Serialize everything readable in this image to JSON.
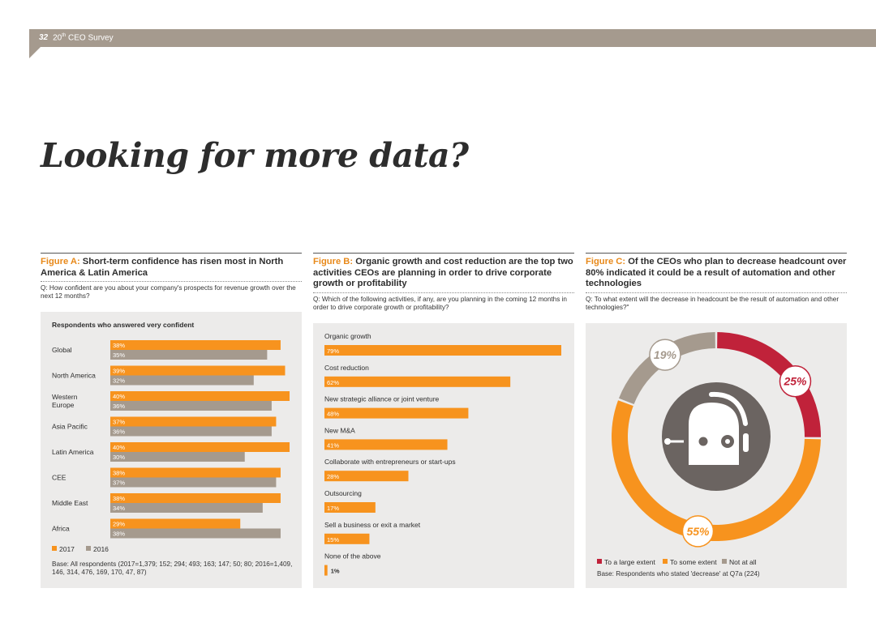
{
  "header": {
    "page_number": "32",
    "survey_prefix": "20",
    "survey_sup": "th",
    "survey_suffix": " CEO Survey"
  },
  "title": "Looking for more data?",
  "figA": {
    "label": "Figure A:",
    "title": "Short-term confidence has risen most in North America & Latin America",
    "question": "Q: How confident are you about your company's prospects for revenue growth over the next 12 months?",
    "base": "Base: All respondents (2017=1,379; 152; 294; 493; 163; 147; 50; 80; 2016=1,409, 146, 314, 476, 169, 170, 47, 87)"
  },
  "figB": {
    "label": "Figure B:",
    "title": "Organic growth and cost reduction are the top two activities CEOs are planning in order to drive corporate growth or profitability",
    "question": "Q: Which of the following activities, if any, are you planning in the coming 12 months in order to drive corporate growth or profitability?"
  },
  "figC": {
    "label": "Figure C:",
    "title": "Of the CEOs who plan to decrease headcount over 80% indicated it could be a result of automation and other technologies",
    "question": "Q: To what extent will the decrease in headcount be the result of automation and other technologies?\"",
    "base": "Base: Respondents who stated 'decrease' at Q7a (224)"
  },
  "colors": {
    "orange": "#f7931e",
    "grey": "#a59a8e",
    "red": "#c0223a",
    "robot": "#6b6461"
  },
  "chart_data": [
    {
      "type": "bar",
      "orientation": "horizontal",
      "title": "Respondents who answered very confident",
      "categories": [
        "Global",
        "North America",
        "Western\nEurope",
        "Asia Pacific",
        "Latin America",
        "CEE",
        "Middle East",
        "Africa"
      ],
      "series": [
        {
          "name": "2017",
          "values": [
            38,
            39,
            40,
            37,
            40,
            38,
            38,
            29
          ],
          "labels": [
            "38%",
            "39%",
            "40%",
            "37%",
            "40%",
            "38%",
            "38%",
            "29%"
          ],
          "color": "#f7931e"
        },
        {
          "name": "2016",
          "values": [
            35,
            32,
            36,
            36,
            30,
            37,
            34,
            38
          ],
          "labels": [
            "35%",
            "32%",
            "36%",
            "36%",
            "30%",
            "37%",
            "34%",
            "38%"
          ],
          "color": "#a59a8e"
        }
      ],
      "legend": [
        "2017",
        "2016"
      ],
      "xlim": [
        0,
        40
      ]
    },
    {
      "type": "bar",
      "orientation": "horizontal",
      "categories": [
        "Organic growth",
        "Cost reduction",
        "New strategic alliance or joint venture",
        "New M&A",
        "Collaborate with entrepreneurs or start-ups",
        "Outsourcing",
        "Sell a business or exit a market",
        "None of the above"
      ],
      "values": [
        79,
        62,
        48,
        41,
        28,
        17,
        15,
        1
      ],
      "labels": [
        "79%",
        "62%",
        "48%",
        "41%",
        "28%",
        "17%",
        "15%",
        "1%"
      ],
      "xlim": [
        0,
        79
      ]
    },
    {
      "type": "pie",
      "donut": true,
      "categories": [
        "To a large extent",
        "To some extent",
        "Not at all"
      ],
      "values": [
        25,
        55,
        19
      ],
      "labels": [
        "25%",
        "55%",
        "19%"
      ],
      "colors": [
        "#c0223a",
        "#f7931e",
        "#a59a8e"
      ]
    }
  ]
}
